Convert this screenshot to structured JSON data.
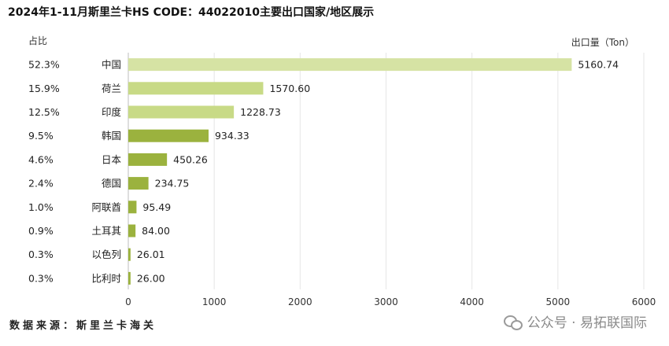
{
  "title": "2024年1-11月斯里兰卡HS CODE：44022010主要出口国家/地区展示",
  "share_header": "占比",
  "unit_label": "出口量（Ton）",
  "source_text": "数据来源：斯里兰卡海关",
  "watermark_text": "公众号 · 易拓联国际",
  "chart_data": {
    "type": "bar",
    "orientation": "horizontal",
    "title": "2024年1-11月斯里兰卡HS CODE：44022010主要出口国家/地区展示",
    "xlabel": "出口量（Ton）",
    "ylabel": "",
    "xlim": [
      0,
      6000
    ],
    "x_ticks": [
      "0",
      "1000",
      "2000",
      "3000",
      "4000",
      "5000",
      "6000"
    ],
    "grid": true,
    "categories": [
      "中国",
      "荷兰",
      "印度",
      "韩国",
      "日本",
      "德国",
      "阿联酋",
      "土耳其",
      "以色列",
      "比利时"
    ],
    "values": [
      5160.74,
      1570.6,
      1228.73,
      934.33,
      450.26,
      234.75,
      95.49,
      84.0,
      26.01,
      26.0
    ],
    "value_labels": [
      "5160.74",
      "1570.60",
      "1228.73",
      "934.33",
      "450.26",
      "234.75",
      "95.49",
      "84.00",
      "26.01",
      "26.00"
    ],
    "shares": [
      "52.3%",
      "15.9%",
      "12.5%",
      "9.5%",
      "4.6%",
      "2.4%",
      "1.0%",
      "0.9%",
      "0.3%",
      "0.3%"
    ],
    "colors": {
      "light": "#d6e3a4",
      "mid": "#c8da86",
      "dark": "#9bb23e",
      "grid": "#e6e6e6",
      "axis": "#bdbdbd"
    },
    "bar_color_keys": [
      "light",
      "mid",
      "mid",
      "dark",
      "dark",
      "dark",
      "dark",
      "dark",
      "dark",
      "dark"
    ]
  }
}
